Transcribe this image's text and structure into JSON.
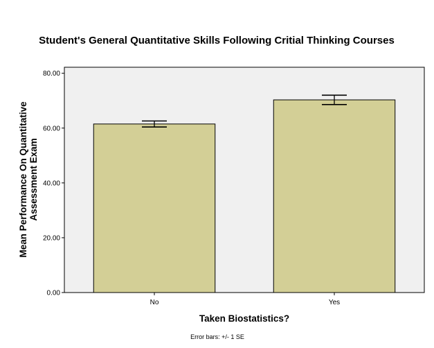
{
  "chart_data": {
    "type": "bar",
    "title": "Student's General Quantitative Skills Following Critial Thinking Courses",
    "xlabel": "Taken Biostatistics?",
    "ylabel_lines": [
      "Mean Performance On Quantitative",
      "Assessment Exam"
    ],
    "categories": [
      "No",
      "Yes"
    ],
    "values": [
      61.5,
      70.3
    ],
    "error_low": [
      60.4,
      68.6
    ],
    "error_high": [
      62.6,
      72.0
    ],
    "ylim": [
      0,
      82.2
    ],
    "yticks": [
      0,
      20,
      40,
      60,
      80
    ],
    "ytick_labels": [
      "0.00",
      "20.00",
      "40.00",
      "60.00",
      "80.00"
    ],
    "grid": false,
    "footnote": "Error bars: +/- 1 SE",
    "colors": {
      "bar_fill": "#d3cf96",
      "plot_background": "#f0f0f0",
      "outline": "#000000"
    }
  }
}
